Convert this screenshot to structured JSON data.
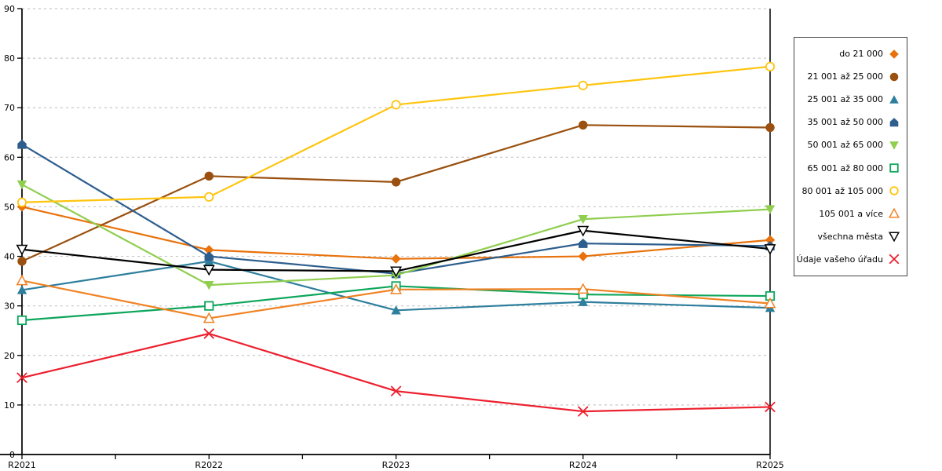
{
  "chart_data": {
    "type": "line",
    "title": "",
    "xlabel": "",
    "ylabel": "",
    "ylim": [
      0,
      90
    ],
    "grid": "horizontal-dashed",
    "legend_position": "right-outside",
    "categories": [
      "R2021",
      "R2022",
      "R2023",
      "R2024",
      "R2025"
    ],
    "y_ticks": [
      0,
      10,
      20,
      30,
      40,
      50,
      60,
      70,
      80,
      90
    ],
    "series": [
      {
        "name": "do 21 000",
        "color": "#E8720C",
        "marker": "diamond-filled",
        "values": [
          50.0,
          41.3,
          39.5,
          40.0,
          43.3
        ]
      },
      {
        "name": "21 001 až 25 000",
        "color": "#9A500F",
        "marker": "circle-filled",
        "values": [
          39.0,
          56.2,
          55.0,
          66.5,
          66.0
        ]
      },
      {
        "name": "25 001 až 35 000",
        "color": "#2E7E9D",
        "marker": "triangle-up-filled",
        "values": [
          33.2,
          39.0,
          29.1,
          30.8,
          29.6
        ]
      },
      {
        "name": "35 001 až 50 000",
        "color": "#2D5E8E",
        "marker": "pentagon-filled",
        "values": [
          62.6,
          40.0,
          36.5,
          42.6,
          42.1
        ]
      },
      {
        "name": "50 001 až 65 000",
        "color": "#8FCE4E",
        "marker": "triangle-down-filled",
        "values": [
          54.5,
          34.2,
          36.2,
          47.5,
          49.5
        ]
      },
      {
        "name": "65 001 až 80 000",
        "color": "#0EA65C",
        "marker": "square-open",
        "values": [
          27.1,
          30.0,
          34.0,
          32.3,
          32.0
        ]
      },
      {
        "name": "80 001 až 105 000",
        "color": "#FFC40D",
        "marker": "circle-open",
        "values": [
          50.9,
          52.0,
          70.6,
          74.5,
          78.3
        ]
      },
      {
        "name": "105 001 a více",
        "color": "#F08223",
        "marker": "triangle-up-open",
        "values": [
          35.1,
          27.5,
          33.3,
          33.4,
          30.5
        ]
      },
      {
        "name": "všechna města",
        "color": "#000000",
        "marker": "triangle-down-open",
        "values": [
          41.4,
          37.3,
          37.0,
          45.2,
          41.5
        ]
      },
      {
        "name": "Údaje vašeho úřadu",
        "color": "#EC1F2D",
        "marker": "x",
        "values": [
          15.5,
          24.4,
          12.8,
          8.7,
          9.6
        ]
      }
    ]
  },
  "style_colors": {
    "gridline": "#c6c6c6",
    "axis": "#000000",
    "background": "#ffffff"
  }
}
